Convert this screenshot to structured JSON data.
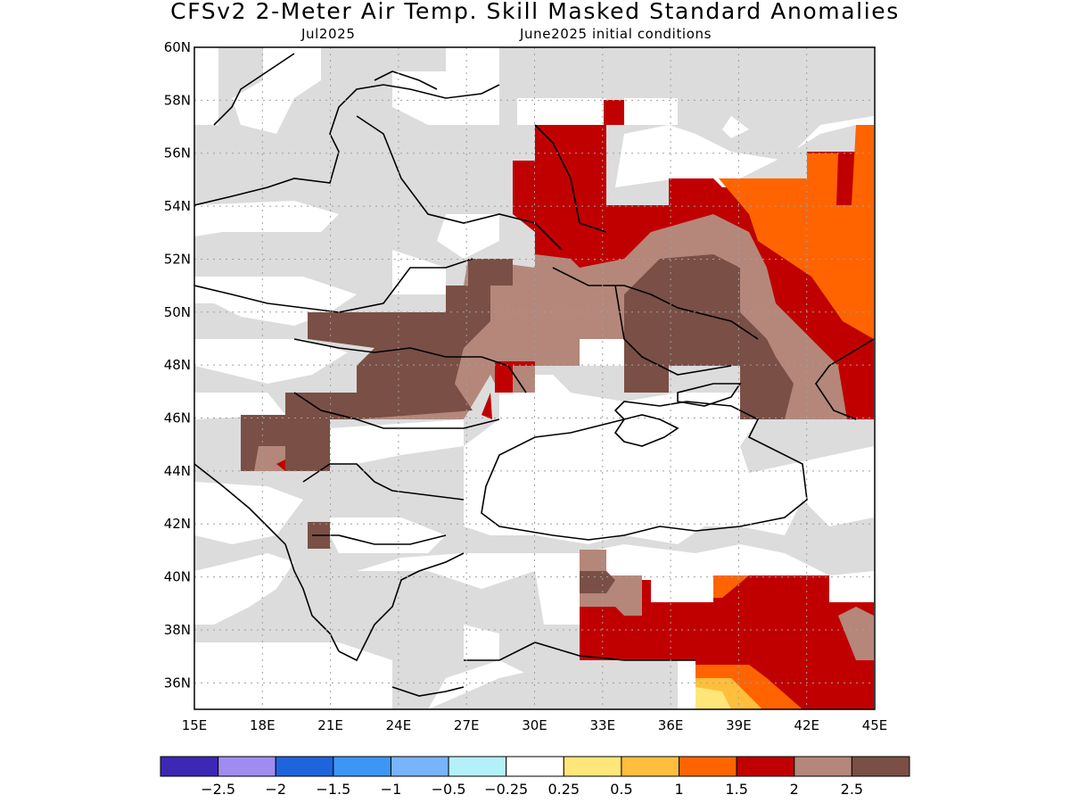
{
  "title": "CFSv2 2-Meter Air Temp. Skill Masked Standard Anomalies",
  "subtitle_left": "Jul2025",
  "subtitle_right": "June2025 initial conditions",
  "map": {
    "lat_labels": [
      "60N",
      "58N",
      "56N",
      "54N",
      "52N",
      "50N",
      "48N",
      "46N",
      "44N",
      "42N",
      "40N",
      "38N",
      "36N"
    ],
    "lon_labels": [
      "15E",
      "18E",
      "21E",
      "24E",
      "27E",
      "30E",
      "33E",
      "36E",
      "39E",
      "42E",
      "45E"
    ],
    "lon_range": [
      15,
      45
    ],
    "lat_range": [
      35,
      60
    ],
    "grid": "dotted"
  },
  "colorbar": {
    "colors": [
      "#3c28b4",
      "#a08cf0",
      "#1e64dc",
      "#3c96f5",
      "#78b4fa",
      "#b4f0fa",
      "#ffffff",
      "#ffe678",
      "#ffbe3c",
      "#ff6400",
      "#c00000",
      "#b4877a",
      "#7a4f45"
    ],
    "labels": [
      "-2.5",
      "-2",
      "-1.5",
      "-1",
      "-0.5",
      "-0.25",
      "0.25",
      "0.5",
      "1",
      "1.5",
      "2",
      "2.5"
    ]
  },
  "legend_colors": {
    "masked": "#dcdcdc",
    "red": "#c00000",
    "orange": "#ff6400",
    "light_orange": "#ffbe3c",
    "yellow": "#ffe678",
    "light_brown": "#b4877a",
    "dark_brown": "#7a4f45"
  }
}
